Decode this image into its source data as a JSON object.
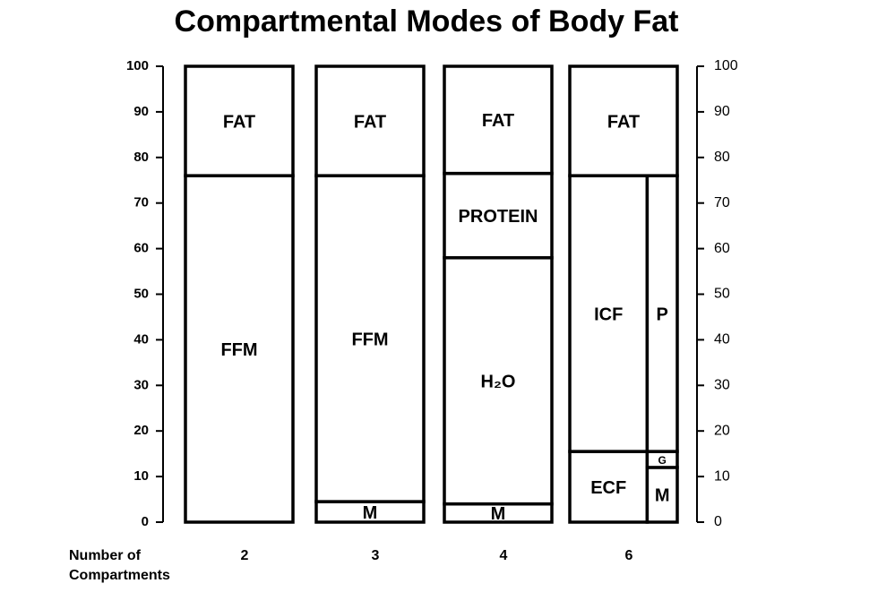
{
  "chart_data": {
    "type": "compartment-bar",
    "title": "Compartmental Modes of Body Fat",
    "x_label": "Number of Compartments",
    "ylim": [
      0,
      100
    ],
    "yticks": [
      0,
      10,
      20,
      30,
      40,
      50,
      60,
      70,
      80,
      90,
      100
    ],
    "y2lim": [
      0,
      100
    ],
    "y2ticks": [
      0,
      10,
      20,
      30,
      40,
      50,
      60,
      70,
      80,
      90,
      100
    ],
    "bars": [
      {
        "category": "2",
        "lanes": [
          [
            {
              "name": "FFM",
              "value": 76
            }
          ]
        ],
        "top": [
          {
            "name": "FAT",
            "value": 24
          }
        ]
      },
      {
        "category": "3",
        "lanes": [
          [
            {
              "name": "M",
              "value": 4.5
            },
            {
              "name": "FFM",
              "value": 71.5
            }
          ]
        ],
        "top": [
          {
            "name": "FAT",
            "value": 24
          }
        ]
      },
      {
        "category": "4",
        "lanes": [
          [
            {
              "name": "M",
              "value": 4
            },
            {
              "name": "H₂O",
              "value": 54
            },
            {
              "name": "PROTEIN",
              "value": 18.5
            }
          ]
        ],
        "top": [
          {
            "name": "FAT",
            "value": 23.5
          }
        ]
      },
      {
        "category": "6",
        "lanes": [
          [
            {
              "name": "ECF",
              "value": 15.5
            },
            {
              "name": "ICF",
              "value": 60.5
            }
          ],
          [
            {
              "name": "M",
              "value": 12
            },
            {
              "name": "G",
              "value": 3.5
            },
            {
              "name": "P",
              "value": 60.5
            }
          ]
        ],
        "top": [
          {
            "name": "FAT",
            "value": 24
          }
        ]
      }
    ]
  }
}
